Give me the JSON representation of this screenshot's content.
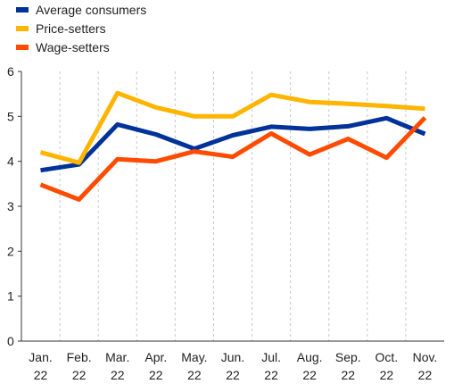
{
  "chart_data": {
    "type": "line",
    "title": "",
    "xlabel": "",
    "ylabel": "",
    "categories": [
      [
        "Jan.",
        "22"
      ],
      [
        "Feb.",
        "22"
      ],
      [
        "Mar.",
        "22"
      ],
      [
        "Apr.",
        "22"
      ],
      [
        "May.",
        "22"
      ],
      [
        "Jun.",
        "22"
      ],
      [
        "Jul.",
        "22"
      ],
      [
        "Aug.",
        "22"
      ],
      [
        "Sep.",
        "22"
      ],
      [
        "Oct.",
        "22"
      ],
      [
        "Nov.",
        "22"
      ]
    ],
    "ylim": [
      0,
      6
    ],
    "yticks": [
      0,
      1,
      2,
      3,
      4,
      5,
      6
    ],
    "grid": "vertical dashed",
    "legend_position": "top-left",
    "series": [
      {
        "name": "Average consumers",
        "color": "#003299",
        "values": [
          3.8,
          3.93,
          4.82,
          4.6,
          4.28,
          4.58,
          4.77,
          4.72,
          4.78,
          4.96,
          4.61
        ]
      },
      {
        "name": "Price-setters",
        "color": "#FFB400",
        "values": [
          4.2,
          3.97,
          5.52,
          5.2,
          5.0,
          5.0,
          5.48,
          5.32,
          5.28,
          5.23,
          5.17
        ]
      },
      {
        "name": "Wage-setters",
        "color": "#FF4B00",
        "values": [
          3.48,
          3.15,
          4.05,
          4.0,
          4.22,
          4.1,
          4.62,
          4.15,
          4.5,
          4.08,
          4.97
        ]
      }
    ]
  }
}
